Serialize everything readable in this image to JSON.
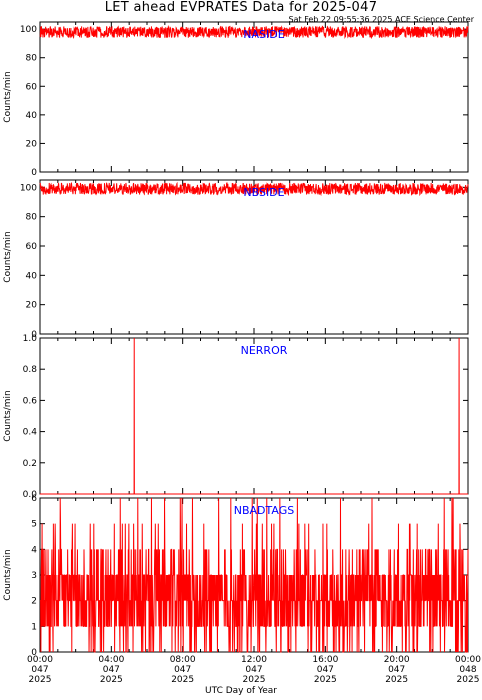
{
  "title": "LET ahead EVPRATES Data for 2025-047",
  "timestamp": "Sat Feb 22 09:55:36 2025 ACE Science Center",
  "xlabel": "UTC Day of Year",
  "colors": {
    "series": "#ff0000",
    "panel_label": "#0000ff",
    "axes": "#000000"
  },
  "chart_data": [
    {
      "type": "line",
      "name": "NASIDE",
      "ylabel": "Counts/min",
      "xlim": [
        0,
        1440
      ],
      "ylim": [
        0,
        105
      ],
      "yticks": [
        0,
        20,
        40,
        60,
        80,
        100
      ],
      "ytick_labels": [
        "0",
        "20",
        "40",
        "60",
        "80",
        "100"
      ],
      "baseline": 98,
      "spread": 4
    },
    {
      "type": "line",
      "name": "NBSIDE",
      "ylabel": "Counts/min",
      "xlim": [
        0,
        1440
      ],
      "ylim": [
        0,
        105
      ],
      "yticks": [
        0,
        20,
        40,
        60,
        80,
        100
      ],
      "ytick_labels": [
        "0",
        "20",
        "40",
        "60",
        "80",
        "100"
      ],
      "baseline": 99,
      "spread": 4
    },
    {
      "type": "line",
      "name": "NERROR",
      "ylabel": "Counts/min",
      "xlim": [
        0,
        1440
      ],
      "ylim": [
        0,
        1.0
      ],
      "yticks": [
        0,
        0.2,
        0.4,
        0.6,
        0.8,
        1.0
      ],
      "ytick_labels": [
        "0.0",
        "0.2",
        "0.4",
        "0.6",
        "0.8",
        "1.0"
      ],
      "spikes": [
        {
          "minute": 317,
          "value": 1
        },
        {
          "minute": 1410,
          "value": 1
        }
      ]
    },
    {
      "type": "line",
      "name": "NBADTAGS",
      "ylabel": "Counts/min",
      "xlim": [
        0,
        1440
      ],
      "ylim": [
        0,
        6
      ],
      "yticks": [
        0,
        1,
        2,
        3,
        4,
        5,
        6
      ],
      "ytick_labels": [
        "0",
        "1",
        "2",
        "3",
        "4",
        "5",
        "6"
      ],
      "value_range": [
        0,
        6
      ]
    }
  ],
  "xticks": [
    {
      "time": "00:00",
      "doy": "047",
      "year": "2025"
    },
    {
      "time": "04:00",
      "doy": "047",
      "year": "2025"
    },
    {
      "time": "08:00",
      "doy": "047",
      "year": "2025"
    },
    {
      "time": "12:00",
      "doy": "047",
      "year": "2025"
    },
    {
      "time": "16:00",
      "doy": "047",
      "year": "2025"
    },
    {
      "time": "20:00",
      "doy": "047",
      "year": "2025"
    },
    {
      "time": "00:00",
      "doy": "048",
      "year": "2025"
    }
  ]
}
